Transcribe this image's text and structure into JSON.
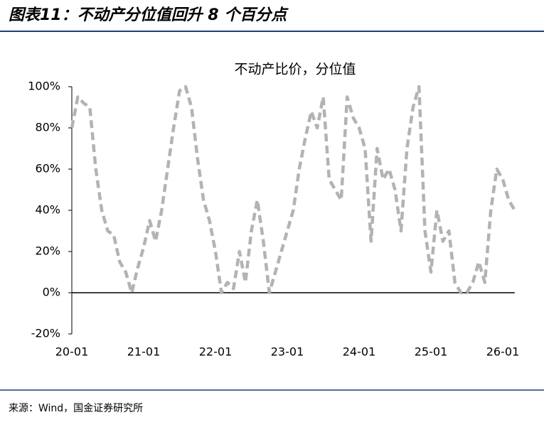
{
  "header": {
    "title": "图表11：不动产分位值回升 8 个百分点"
  },
  "chart_data": {
    "type": "line",
    "title": "不动产比价，分位值",
    "categories": [
      "20-01",
      null,
      null,
      null,
      null,
      null,
      null,
      null,
      null,
      null,
      null,
      null,
      "21-01",
      null,
      null,
      null,
      null,
      null,
      null,
      null,
      null,
      null,
      null,
      null,
      "22-01",
      null,
      null,
      null,
      null,
      null,
      null,
      null,
      null,
      null,
      null,
      null,
      "23-01",
      null,
      null,
      null,
      null,
      null,
      null,
      null,
      null,
      null,
      null,
      null,
      "24-01",
      null,
      null,
      null,
      null,
      null,
      null,
      null,
      null,
      null,
      null,
      null,
      "25-01",
      null,
      null,
      null,
      null,
      null,
      null,
      null,
      null,
      null,
      null,
      null,
      "26-01",
      null,
      null
    ],
    "values": [
      80,
      95,
      92,
      90,
      60,
      40,
      30,
      28,
      15,
      10,
      0,
      12,
      22,
      35,
      25,
      40,
      60,
      80,
      98,
      100,
      90,
      65,
      45,
      35,
      20,
      0,
      5,
      2,
      20,
      5,
      30,
      45,
      25,
      0,
      10,
      20,
      30,
      40,
      60,
      75,
      88,
      80,
      95,
      55,
      50,
      45,
      95,
      85,
      80,
      70,
      25,
      70,
      55,
      60,
      50,
      30,
      70,
      90,
      100,
      30,
      10,
      40,
      25,
      30,
      5,
      0,
      0,
      5,
      15,
      5,
      40,
      60,
      55,
      45,
      40
    ],
    "color": "#b3b3b3",
    "ylim": [
      -20,
      100
    ],
    "yticks": [
      {
        "value": -20,
        "label": "-20%"
      },
      {
        "value": 0,
        "label": "0%"
      },
      {
        "value": 20,
        "label": "20%"
      },
      {
        "value": 40,
        "label": "40%"
      },
      {
        "value": 60,
        "label": "60%"
      },
      {
        "value": 80,
        "label": "80%"
      },
      {
        "value": 100,
        "label": "100%"
      }
    ],
    "grid": false
  },
  "source": "来源：Wind，国金证券研究所"
}
